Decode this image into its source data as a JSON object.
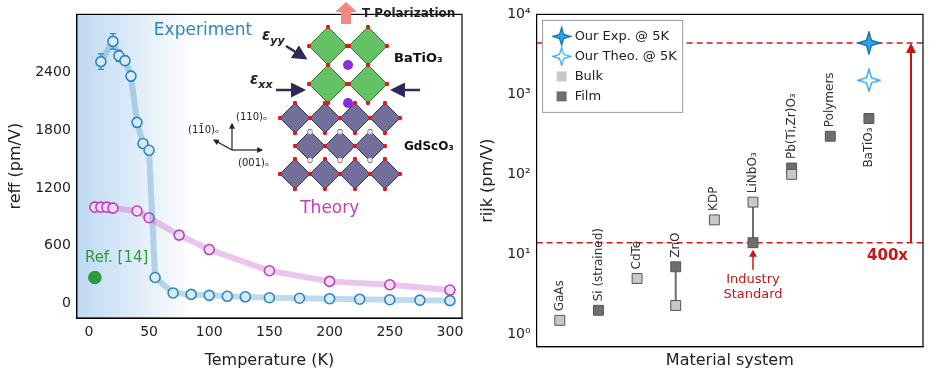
{
  "chart_data": [
    {
      "type": "line",
      "x_label": "Temperature (K)",
      "y_label": "reff (pm/V)",
      "xlim": [
        -10,
        310
      ],
      "xticks": [
        0,
        50,
        100,
        150,
        200,
        250,
        300
      ],
      "ylim": [
        -150,
        3000
      ],
      "yticks": [
        0,
        600,
        1200,
        1800,
        2400
      ],
      "grid": false,
      "series": [
        {
          "name": "Experiment",
          "color": "#2e86c1",
          "marker": "open_circle",
          "line_style": "solid",
          "x": [
            10,
            20,
            25,
            30,
            35,
            40,
            45,
            50,
            55,
            70,
            85,
            100,
            115,
            130,
            150,
            175,
            200,
            225,
            250,
            275,
            300
          ],
          "values": [
            2510,
            2720,
            2570,
            2520,
            2360,
            1880,
            1660,
            1590,
            270,
            110,
            95,
            85,
            75,
            70,
            60,
            55,
            50,
            45,
            40,
            35,
            30
          ],
          "errors": [
            80,
            80,
            60,
            50,
            50,
            50,
            40,
            35,
            25,
            20,
            20,
            20,
            20,
            20,
            20,
            20,
            20,
            20,
            20,
            20,
            20
          ]
        },
        {
          "name": "Theory",
          "color": "#c03ec0",
          "marker": "open_circle",
          "line_style": "solid",
          "x": [
            5,
            10,
            15,
            20,
            40,
            50,
            75,
            100,
            150,
            200,
            250,
            300
          ],
          "values": [
            1000,
            1000,
            1000,
            990,
            960,
            890,
            710,
            560,
            340,
            230,
            195,
            140
          ]
        },
        {
          "name": "Ref. [14]",
          "color": "#2e9a3a",
          "marker": "circle",
          "type": "scatter",
          "x": [
            5
          ],
          "values": [
            270
          ]
        }
      ],
      "annotations": {
        "polarization": "T Polarization",
        "strain_y": "εyy",
        "strain_x": "εxx",
        "film": "BaTiO₃",
        "substrate": "GdScO₃",
        "axes": [
          "(11̄0)ₒ",
          "(110)ₒ",
          "(001)ₒ"
        ]
      }
    },
    {
      "type": "scatter",
      "x_label": "Material system",
      "y_label": "rijk (pm/V)",
      "log": "y",
      "ylim": [
        0.7,
        10000
      ],
      "yticks": [
        {
          "value": 1,
          "label": "10⁰"
        },
        {
          "value": 10,
          "label": "10¹"
        },
        {
          "value": 100,
          "label": "10²"
        },
        {
          "value": 1000,
          "label": "10³"
        },
        {
          "value": 10000,
          "label": "10⁴"
        }
      ],
      "grid": false,
      "tick_labels": "y",
      "legend": "upper left",
      "categories": [
        "GaAs",
        "Si (strained)",
        "CdTe",
        "ZnO",
        "KDP",
        "LiNbO₃",
        "Pb(Ti,Zr)O₃",
        "Polymers",
        "BaTiO₃"
      ],
      "series": [
        {
          "name": "Our Exp. @ 5K",
          "color": "#2aa6ee",
          "marker": "star",
          "values": [
            null,
            null,
            null,
            null,
            null,
            null,
            null,
            null,
            4400
          ]
        },
        {
          "name": "Our Theo. @ 5K",
          "color": "#2aa6ee",
          "marker": "open_star",
          "values": [
            null,
            null,
            null,
            null,
            null,
            null,
            null,
            null,
            1500
          ]
        },
        {
          "name": "Bulk",
          "color": "#c8c8c8",
          "marker": "square",
          "values": [
            1.5,
            null,
            5,
            2.3,
            27,
            45,
            100,
            null,
            null
          ]
        },
        {
          "name": "Film",
          "color": "#6e6e6e",
          "marker": "square",
          "values": [
            null,
            2,
            null,
            7,
            null,
            14,
            120,
            300,
            500
          ]
        }
      ],
      "annotations": {
        "industry": {
          "text": "Industry Standard",
          "category": "LiNbO₃"
        },
        "improvement": "400x"
      }
    }
  ]
}
